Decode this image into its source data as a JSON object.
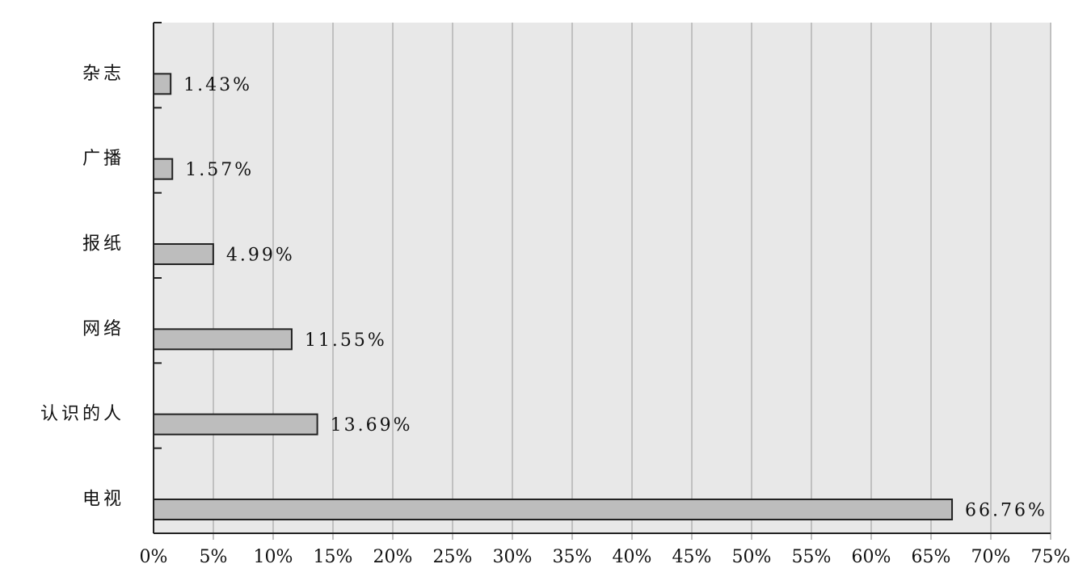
{
  "chart_data": {
    "type": "barh",
    "categories": [
      "杂志",
      "广播",
      "报纸",
      "网络",
      "认识的人",
      "电视"
    ],
    "values": [
      1.43,
      1.57,
      4.99,
      11.55,
      13.69,
      66.76
    ],
    "value_labels": [
      "1.43%",
      "1.57%",
      "4.99%",
      "11.55%",
      "13.69%",
      "66.76%"
    ],
    "color": "#bdbdbd",
    "xlim": [
      0,
      75
    ],
    "xticks": [
      {
        "value": 0,
        "label": "0%"
      },
      {
        "value": 5,
        "label": "5%"
      },
      {
        "value": 10,
        "label": "10%"
      },
      {
        "value": 15,
        "label": "15%"
      },
      {
        "value": 20,
        "label": "20%"
      },
      {
        "value": 25,
        "label": "25%"
      },
      {
        "value": 30,
        "label": "30%"
      },
      {
        "value": 35,
        "label": "35%"
      },
      {
        "value": 40,
        "label": "40%"
      },
      {
        "value": 45,
        "label": "45%"
      },
      {
        "value": 50,
        "label": "50%"
      },
      {
        "value": 55,
        "label": "55%"
      },
      {
        "value": 60,
        "label": "60%"
      },
      {
        "value": 65,
        "label": "65%"
      },
      {
        "value": 70,
        "label": "70%"
      },
      {
        "value": 75,
        "label": "75%"
      }
    ],
    "grid": true
  }
}
